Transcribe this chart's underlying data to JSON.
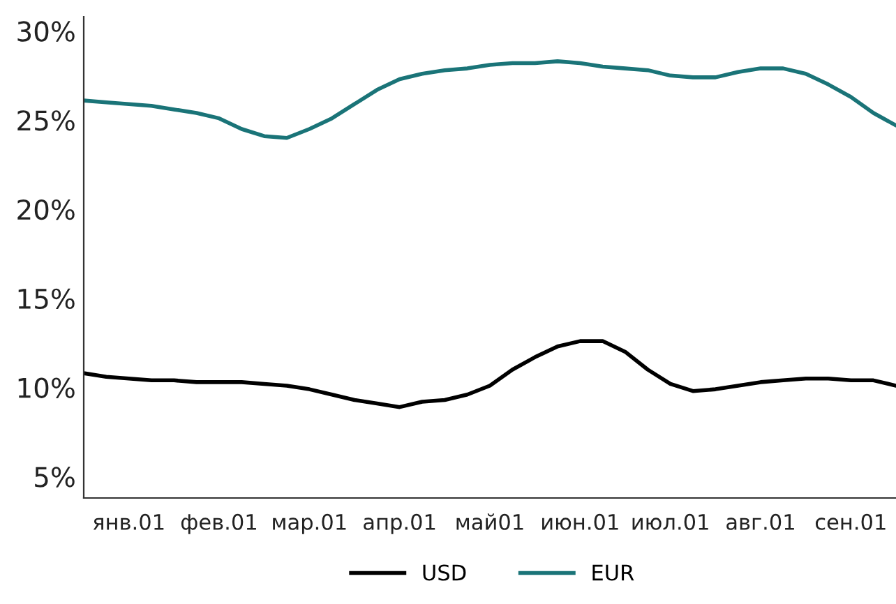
{
  "chart_data": {
    "type": "line",
    "categories": [
      null,
      null,
      "янв.01",
      null,
      null,
      null,
      "фев.01",
      null,
      null,
      null,
      "мар.01",
      null,
      null,
      null,
      "апр.01",
      null,
      null,
      null,
      "май01",
      null,
      null,
      null,
      "июн.01",
      null,
      null,
      null,
      "июл.01",
      null,
      null,
      null,
      "авг.01",
      null,
      null,
      null,
      "сен.01",
      null,
      null
    ],
    "ylim": [
      3.8,
      30.8
    ],
    "yticks": [
      {
        "value": 5,
        "label": "5%"
      },
      {
        "value": 10,
        "label": "10%"
      },
      {
        "value": 15,
        "label": "15%"
      },
      {
        "value": 20,
        "label": "20%"
      },
      {
        "value": 25,
        "label": "25%"
      },
      {
        "value": 30,
        "label": "30%"
      }
    ],
    "grid": false,
    "legend": "bottom",
    "marker": "none",
    "line_style": "solid",
    "series": [
      {
        "name": "USD",
        "color": "#000000",
        "values": [
          10.8,
          10.6,
          10.5,
          10.4,
          10.4,
          10.3,
          10.3,
          10.3,
          10.2,
          10.1,
          9.9,
          9.6,
          9.3,
          9.1,
          8.9,
          9.2,
          9.3,
          9.6,
          10.1,
          11.0,
          11.7,
          12.3,
          12.6,
          12.6,
          12.0,
          11.0,
          10.2,
          9.8,
          9.9,
          10.1,
          10.3,
          10.4,
          10.5,
          10.5,
          10.4,
          10.4,
          10.1
        ]
      },
      {
        "name": "EUR",
        "color": "#1a7478",
        "values": [
          26.1,
          26.0,
          25.9,
          25.8,
          25.6,
          25.4,
          25.1,
          24.5,
          24.1,
          24.0,
          24.5,
          25.1,
          25.9,
          26.7,
          27.3,
          27.6,
          27.8,
          27.9,
          28.1,
          28.2,
          28.2,
          28.3,
          28.2,
          28.0,
          27.9,
          27.8,
          27.5,
          27.4,
          27.4,
          27.7,
          27.9,
          27.9,
          27.6,
          27.0,
          26.3,
          25.4,
          24.7
        ]
      }
    ]
  }
}
